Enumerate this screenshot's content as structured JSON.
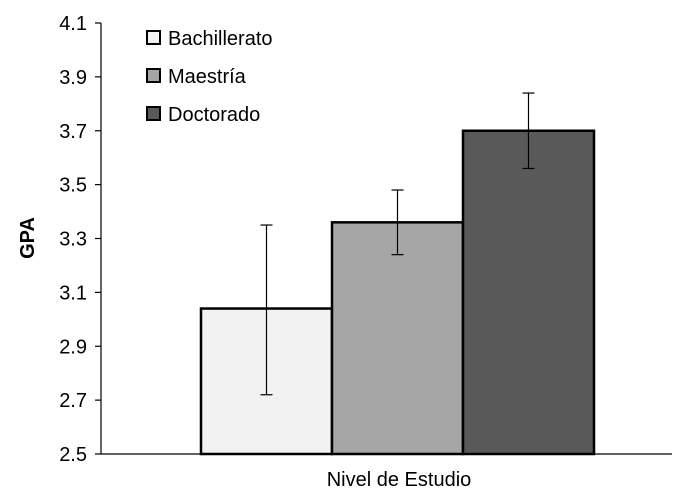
{
  "chart_data": {
    "type": "bar",
    "xlabel": "Nivel de Estudio",
    "ylabel": "GPA",
    "ylim": [
      2.5,
      4.1
    ],
    "yticks": [
      "2.5",
      "2.7",
      "2.9",
      "3.1",
      "3.3",
      "3.5",
      "3.7",
      "3.9",
      "4.1"
    ],
    "grid": false,
    "legend_position": "top-left",
    "series": [
      {
        "name": "Bachillerato",
        "value": 3.04,
        "error_low": 2.72,
        "error_high": 3.35,
        "color": "#f2f2f2"
      },
      {
        "name": "Maestría",
        "value": 3.36,
        "error_low": 3.24,
        "error_high": 3.48,
        "color": "#a6a6a6"
      },
      {
        "name": "Doctorado",
        "value": 3.7,
        "error_low": 3.56,
        "error_high": 3.84,
        "color": "#595959"
      }
    ]
  }
}
